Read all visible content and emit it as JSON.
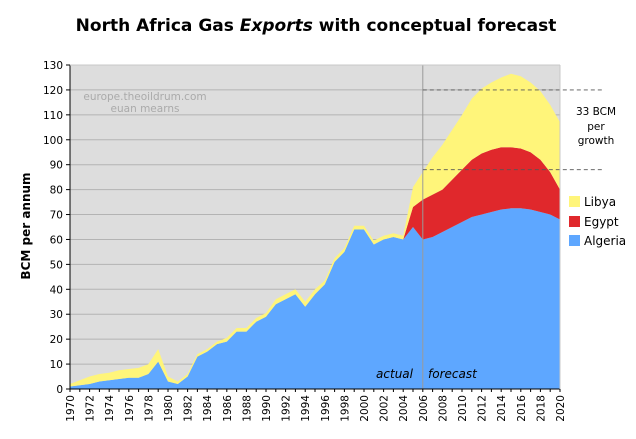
{
  "chart_data": {
    "type": "area",
    "stacked": true,
    "title_prefix": "North Africa Gas ",
    "title_emphasis": "Exports",
    "title_suffix": " with conceptual forecast",
    "ylabel": "BCM per annum",
    "xlabel": "",
    "ylim": [
      0,
      130
    ],
    "ytick_step": 10,
    "xlim": [
      1970,
      2020
    ],
    "xtick_step": 2,
    "grid": "horizontal",
    "watermark": [
      "europe.theoildrum.com",
      "euan mearns"
    ],
    "annotations": {
      "actual": "actual",
      "forecast": "forecast",
      "divider_year": 2006,
      "growth_lines": [
        88,
        120
      ],
      "growth_text": [
        "33 BCM",
        "per",
        "growth"
      ]
    },
    "colors": {
      "plot_bg": "#dddddd",
      "Algeria": "#5ea7ff",
      "Egypt": "#e0282c",
      "Libya": "#fff57a"
    },
    "legend_position": "right",
    "legend_order": [
      "Libya",
      "Egypt",
      "Algeria"
    ],
    "x": [
      1970,
      1971,
      1972,
      1973,
      1974,
      1975,
      1976,
      1977,
      1978,
      1979,
      1980,
      1981,
      1982,
      1983,
      1984,
      1985,
      1986,
      1987,
      1988,
      1989,
      1990,
      1991,
      1992,
      1993,
      1994,
      1995,
      1996,
      1997,
      1998,
      1999,
      2000,
      2001,
      2002,
      2003,
      2004,
      2005,
      2006,
      2007,
      2008,
      2009,
      2010,
      2011,
      2012,
      2013,
      2014,
      2015,
      2016,
      2017,
      2018,
      2019,
      2020
    ],
    "series": [
      {
        "name": "Algeria",
        "values": [
          1,
          1.5,
          2,
          3,
          3.5,
          4,
          4.5,
          4.5,
          6,
          11,
          3,
          2,
          5,
          13,
          15,
          18,
          19,
          23,
          23,
          27,
          29,
          34,
          36,
          38,
          33,
          38,
          42,
          51,
          55,
          64,
          64,
          58,
          60,
          61,
          60,
          65,
          60,
          61,
          63,
          65,
          67,
          69,
          70,
          71,
          72,
          72.5,
          72.5,
          72,
          71,
          70,
          68
        ]
      },
      {
        "name": "Egypt",
        "values": [
          0,
          0,
          0,
          0,
          0,
          0,
          0,
          0,
          0,
          0,
          0,
          0,
          0,
          0,
          0,
          0,
          0,
          0,
          0,
          0,
          0,
          0,
          0,
          0,
          0,
          0,
          0,
          0,
          0,
          0,
          0,
          0,
          0,
          0,
          0,
          8,
          16,
          17,
          17,
          19,
          21,
          23,
          24.5,
          25,
          25,
          24.5,
          24,
          23,
          21,
          17,
          12
        ]
      },
      {
        "name": "Libya",
        "values": [
          1,
          2,
          3,
          3,
          3,
          3.5,
          3.5,
          4,
          4,
          5,
          2,
          1,
          1,
          1,
          1,
          1,
          1.5,
          1.5,
          1.5,
          1.5,
          1.5,
          2,
          2,
          2,
          2,
          2,
          1.5,
          1.5,
          1.5,
          1.5,
          1.5,
          1.5,
          1.5,
          1.5,
          1.5,
          8,
          11,
          15,
          18,
          20,
          22,
          24.5,
          26,
          27,
          28,
          29.5,
          29,
          28,
          27.5,
          27,
          27
        ]
      }
    ]
  }
}
